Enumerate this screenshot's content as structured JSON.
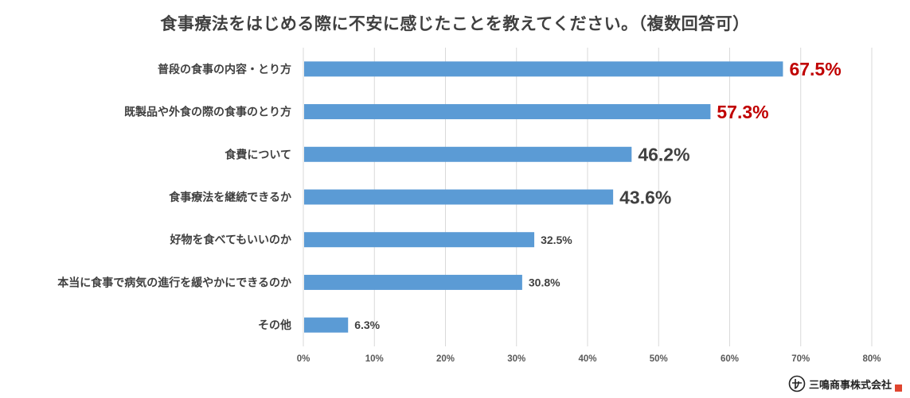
{
  "title": "食事療法をはじめる際に不安に感じたことを教えてください。（複数回答可）",
  "chart_data": {
    "type": "bar",
    "orientation": "horizontal",
    "title": "食事療法をはじめる際に不安に感じたことを教えてください。（複数回答可）",
    "xlabel": "",
    "ylabel": "",
    "xlim": [
      0,
      80
    ],
    "grid": true,
    "x_ticks": [
      "0%",
      "10%",
      "20%",
      "30%",
      "40%",
      "50%",
      "60%",
      "70%",
      "80%"
    ],
    "categories": [
      "普段の食事の内容・とり方",
      "既製品や外食の際の食事のとり方",
      "食費について",
      "食事療法を継続できるか",
      "好物を食べてもいいのか",
      "本当に食事で病気の進行を緩やかにできるのか",
      "その他"
    ],
    "values": [
      67.5,
      57.3,
      46.2,
      43.6,
      32.5,
      30.8,
      6.3
    ],
    "value_labels": [
      "67.5%",
      "57.3%",
      "46.2%",
      "43.6%",
      "32.5%",
      "30.8%",
      "6.3%"
    ],
    "label_emphasis": [
      "red-large",
      "red-large",
      "large",
      "large",
      "normal",
      "normal",
      "normal"
    ],
    "bar_color": "#5b9bd5",
    "highlight_color": "#c00000",
    "label_color": "#404040",
    "grid_color": "#d9d9d9"
  },
  "footer": {
    "logo_text": "三鳴商事株式会社"
  }
}
